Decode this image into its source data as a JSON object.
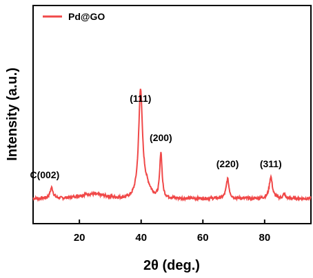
{
  "chart_data": {
    "type": "line",
    "xlabel": "2θ (deg.)",
    "ylabel": "Intensity (a.u.)",
    "xlim": [
      5,
      95
    ],
    "ylim": [
      0,
      100
    ],
    "x_ticks": [
      20,
      40,
      60,
      80
    ],
    "y_ticks_shown": false,
    "grid": false,
    "legend_position": "top-left",
    "series": [
      {
        "name": "Pd@GO",
        "color": "#f04848",
        "peaks": [
          {
            "x": 11.0,
            "height": 5,
            "width": 0.6
          },
          {
            "x": 39.8,
            "height": 46,
            "width": 0.7
          },
          {
            "x": 46.4,
            "height": 21,
            "width": 0.45
          },
          {
            "x": 68.0,
            "height": 9,
            "width": 0.55
          },
          {
            "x": 82.0,
            "height": 10,
            "width": 0.6
          },
          {
            "x": 86.3,
            "height": 2,
            "width": 0.4
          }
        ],
        "baseline": 11.5,
        "broad_humps": [
          {
            "x": 24.0,
            "height": 2,
            "width": 6.0
          },
          {
            "x": 41.0,
            "height": 6,
            "width": 2.5
          }
        ]
      }
    ],
    "annotations": [
      {
        "text": "C(002)",
        "x": 11.0
      },
      {
        "text": "(111)",
        "x": 39.8
      },
      {
        "text": "(200)",
        "x": 46.4
      },
      {
        "text": "(220)",
        "x": 68.0
      },
      {
        "text": "(311)",
        "x": 82.0
      }
    ]
  }
}
